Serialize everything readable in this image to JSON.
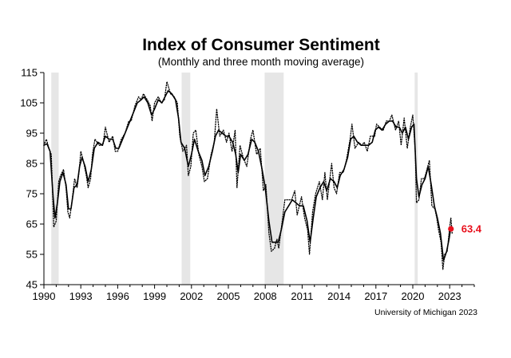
{
  "chart_data": {
    "type": "line",
    "title": "Index of Consumer Sentiment",
    "subtitle": "(Monthly and three month moving average)",
    "source": "University of Michigan 2023",
    "xlim": [
      1990,
      2025
    ],
    "ylim": [
      45,
      115
    ],
    "yticks": [
      45,
      55,
      65,
      75,
      85,
      95,
      105,
      115
    ],
    "xticks": [
      1990,
      1993,
      1996,
      1999,
      2002,
      2005,
      2008,
      2011,
      2014,
      2017,
      2020,
      2023
    ],
    "xticks_labels": [
      "1990",
      "1993",
      "1996",
      "1999",
      "2002",
      "2005",
      "2008",
      "2011",
      "2014",
      "2017",
      "2020",
      "2023"
    ],
    "yticks_labels": [
      "45",
      "55",
      "65",
      "75",
      "85",
      "95",
      "105",
      "115"
    ],
    "recessions": [
      {
        "start": 1990.6,
        "end": 1991.2
      },
      {
        "start": 2001.2,
        "end": 2001.9
      },
      {
        "start": 2007.95,
        "end": 2009.5
      },
      {
        "start": 2020.15,
        "end": 2020.4
      }
    ],
    "latest": {
      "x": 2023.1,
      "y": 63.4,
      "label": "63.4",
      "color": "#e8101c"
    },
    "series": [
      {
        "name": "Monthly",
        "style": "dotted",
        "points": [
          [
            1990.0,
            91
          ],
          [
            1990.2,
            93
          ],
          [
            1990.4,
            90
          ],
          [
            1990.6,
            88
          ],
          [
            1990.7,
            76
          ],
          [
            1990.8,
            64
          ],
          [
            1991.0,
            66
          ],
          [
            1991.2,
            79
          ],
          [
            1991.35,
            81
          ],
          [
            1991.6,
            83
          ],
          [
            1991.8,
            77
          ],
          [
            1991.95,
            69
          ],
          [
            1992.1,
            67
          ],
          [
            1992.3,
            73
          ],
          [
            1992.5,
            80
          ],
          [
            1992.7,
            77
          ],
          [
            1992.85,
            82
          ],
          [
            1993.0,
            89
          ],
          [
            1993.2,
            86
          ],
          [
            1993.45,
            81
          ],
          [
            1993.6,
            77
          ],
          [
            1993.8,
            80
          ],
          [
            1993.95,
            88
          ],
          [
            1994.15,
            93
          ],
          [
            1994.5,
            91
          ],
          [
            1994.8,
            91
          ],
          [
            1995.0,
            97
          ],
          [
            1995.3,
            92
          ],
          [
            1995.6,
            94
          ],
          [
            1995.8,
            89
          ],
          [
            1996.0,
            89
          ],
          [
            1996.3,
            93
          ],
          [
            1996.6,
            95
          ],
          [
            1996.9,
            99
          ],
          [
            1997.1,
            99
          ],
          [
            1997.4,
            104
          ],
          [
            1997.7,
            107
          ],
          [
            1997.9,
            106
          ],
          [
            1998.1,
            108
          ],
          [
            1998.4,
            106
          ],
          [
            1998.65,
            104
          ],
          [
            1998.8,
            99
          ],
          [
            1999.0,
            105
          ],
          [
            1999.3,
            107
          ],
          [
            1999.55,
            105
          ],
          [
            1999.8,
            106
          ],
          [
            2000.0,
            112
          ],
          [
            2000.3,
            108
          ],
          [
            2000.6,
            107
          ],
          [
            2000.85,
            105
          ],
          [
            2001.05,
            94
          ],
          [
            2001.3,
            89
          ],
          [
            2001.6,
            91
          ],
          [
            2001.75,
            81
          ],
          [
            2001.95,
            84
          ],
          [
            2002.15,
            95
          ],
          [
            2002.35,
            96
          ],
          [
            2002.6,
            88
          ],
          [
            2002.85,
            84
          ],
          [
            2003.05,
            79
          ],
          [
            2003.3,
            80
          ],
          [
            2003.6,
            88
          ],
          [
            2003.85,
            92
          ],
          [
            2004.05,
            103
          ],
          [
            2004.3,
            94
          ],
          [
            2004.6,
            96
          ],
          [
            2004.85,
            92
          ],
          [
            2005.05,
            95
          ],
          [
            2005.3,
            89
          ],
          [
            2005.55,
            96
          ],
          [
            2005.7,
            77
          ],
          [
            2005.95,
            91
          ],
          [
            2006.2,
            87
          ],
          [
            2006.5,
            84
          ],
          [
            2006.8,
            93
          ],
          [
            2007.0,
            96
          ],
          [
            2007.3,
            88
          ],
          [
            2007.6,
            90
          ],
          [
            2007.85,
            76
          ],
          [
            2008.05,
            78
          ],
          [
            2008.3,
            62
          ],
          [
            2008.5,
            56
          ],
          [
            2008.75,
            57
          ],
          [
            2008.95,
            60
          ],
          [
            2009.1,
            57
          ],
          [
            2009.35,
            65
          ],
          [
            2009.6,
            73
          ],
          [
            2009.9,
            73
          ],
          [
            2010.15,
            73
          ],
          [
            2010.4,
            76
          ],
          [
            2010.6,
            68
          ],
          [
            2010.95,
            74
          ],
          [
            2011.2,
            67
          ],
          [
            2011.45,
            63
          ],
          [
            2011.6,
            55
          ],
          [
            2011.85,
            69
          ],
          [
            2012.1,
            75
          ],
          [
            2012.4,
            79
          ],
          [
            2012.65,
            73
          ],
          [
            2012.85,
            82
          ],
          [
            2013.05,
            73
          ],
          [
            2013.4,
            85
          ],
          [
            2013.6,
            77
          ],
          [
            2013.8,
            75
          ],
          [
            2014.05,
            82
          ],
          [
            2014.35,
            82
          ],
          [
            2014.6,
            86
          ],
          [
            2014.9,
            93
          ],
          [
            2015.05,
            98
          ],
          [
            2015.3,
            90
          ],
          [
            2015.6,
            92
          ],
          [
            2015.85,
            91
          ],
          [
            2016.05,
            92
          ],
          [
            2016.3,
            89
          ],
          [
            2016.55,
            94
          ],
          [
            2016.9,
            94
          ],
          [
            2017.05,
            98
          ],
          [
            2017.3,
            97
          ],
          [
            2017.6,
            96
          ],
          [
            2017.85,
            99
          ],
          [
            2018.1,
            99
          ],
          [
            2018.3,
            101
          ],
          [
            2018.6,
            96
          ],
          [
            2018.85,
            99
          ],
          [
            2019.05,
            91
          ],
          [
            2019.3,
            100
          ],
          [
            2019.55,
            90
          ],
          [
            2019.8,
            97
          ],
          [
            2020.0,
            101
          ],
          [
            2020.2,
            89
          ],
          [
            2020.3,
            72
          ],
          [
            2020.5,
            73
          ],
          [
            2020.7,
            80
          ],
          [
            2020.95,
            80
          ],
          [
            2021.15,
            83
          ],
          [
            2021.35,
            86
          ],
          [
            2021.55,
            71
          ],
          [
            2021.8,
            70
          ],
          [
            2021.95,
            67
          ],
          [
            2022.1,
            63
          ],
          [
            2022.3,
            59
          ],
          [
            2022.45,
            50
          ],
          [
            2022.6,
            55
          ],
          [
            2022.8,
            56
          ],
          [
            2023.0,
            64
          ],
          [
            2023.1,
            67
          ],
          [
            2023.2,
            62
          ]
        ]
      },
      {
        "name": "Three month moving average",
        "style": "solid",
        "points": [
          [
            1990.0,
            91
          ],
          [
            1990.25,
            91.5
          ],
          [
            1990.5,
            89
          ],
          [
            1990.75,
            74
          ],
          [
            1990.9,
            67
          ],
          [
            1991.1,
            72
          ],
          [
            1991.3,
            79
          ],
          [
            1991.55,
            82
          ],
          [
            1991.8,
            78
          ],
          [
            1992.0,
            70
          ],
          [
            1992.2,
            70
          ],
          [
            1992.45,
            77
          ],
          [
            1992.7,
            78
          ],
          [
            1992.9,
            84
          ],
          [
            1993.1,
            87
          ],
          [
            1993.35,
            84
          ],
          [
            1993.6,
            79
          ],
          [
            1993.85,
            83
          ],
          [
            1994.1,
            90
          ],
          [
            1994.4,
            92
          ],
          [
            1994.75,
            91
          ],
          [
            1995.0,
            94
          ],
          [
            1995.3,
            93
          ],
          [
            1995.6,
            93
          ],
          [
            1995.85,
            90
          ],
          [
            1996.1,
            90
          ],
          [
            1996.4,
            93
          ],
          [
            1996.7,
            96
          ],
          [
            1997.0,
            99
          ],
          [
            1997.3,
            102
          ],
          [
            1997.6,
            105
          ],
          [
            1997.9,
            106
          ],
          [
            1998.15,
            107
          ],
          [
            1998.45,
            105
          ],
          [
            1998.75,
            101
          ],
          [
            1999.0,
            103
          ],
          [
            1999.3,
            106
          ],
          [
            1999.6,
            105
          ],
          [
            1999.85,
            107
          ],
          [
            2000.1,
            109
          ],
          [
            2000.4,
            108
          ],
          [
            2000.7,
            106
          ],
          [
            2000.95,
            100
          ],
          [
            2001.15,
            92
          ],
          [
            2001.45,
            90
          ],
          [
            2001.75,
            84
          ],
          [
            2002.0,
            88
          ],
          [
            2002.25,
            93
          ],
          [
            2002.55,
            89
          ],
          [
            2002.85,
            86
          ],
          [
            2003.1,
            81
          ],
          [
            2003.4,
            84
          ],
          [
            2003.7,
            89
          ],
          [
            2003.95,
            94
          ],
          [
            2004.2,
            96
          ],
          [
            2004.5,
            95
          ],
          [
            2004.8,
            94
          ],
          [
            2005.05,
            94
          ],
          [
            2005.35,
            92
          ],
          [
            2005.6,
            88
          ],
          [
            2005.8,
            82
          ],
          [
            2006.0,
            88
          ],
          [
            2006.3,
            86
          ],
          [
            2006.6,
            88
          ],
          [
            2006.9,
            93
          ],
          [
            2007.15,
            92
          ],
          [
            2007.45,
            89
          ],
          [
            2007.75,
            83
          ],
          [
            2008.0,
            77
          ],
          [
            2008.3,
            66
          ],
          [
            2008.55,
            59
          ],
          [
            2008.8,
            59
          ],
          [
            2009.05,
            59
          ],
          [
            2009.3,
            63
          ],
          [
            2009.6,
            69
          ],
          [
            2009.9,
            71
          ],
          [
            2010.2,
            73
          ],
          [
            2010.5,
            72
          ],
          [
            2010.8,
            71
          ],
          [
            2011.1,
            71
          ],
          [
            2011.4,
            66
          ],
          [
            2011.65,
            59
          ],
          [
            2011.9,
            67
          ],
          [
            2012.15,
            74
          ],
          [
            2012.45,
            77
          ],
          [
            2012.75,
            79
          ],
          [
            2013.0,
            76
          ],
          [
            2013.3,
            80
          ],
          [
            2013.6,
            79
          ],
          [
            2013.85,
            77
          ],
          [
            2014.1,
            81
          ],
          [
            2014.4,
            83
          ],
          [
            2014.7,
            87
          ],
          [
            2014.95,
            93
          ],
          [
            2015.2,
            94
          ],
          [
            2015.5,
            92
          ],
          [
            2015.8,
            91
          ],
          [
            2016.1,
            91
          ],
          [
            2016.4,
            91
          ],
          [
            2016.7,
            92
          ],
          [
            2016.95,
            96
          ],
          [
            2017.2,
            97
          ],
          [
            2017.5,
            96
          ],
          [
            2017.8,
            98
          ],
          [
            2018.1,
            99
          ],
          [
            2018.35,
            99
          ],
          [
            2018.65,
            97
          ],
          [
            2018.9,
            97
          ],
          [
            2019.15,
            95
          ],
          [
            2019.4,
            97
          ],
          [
            2019.65,
            93
          ],
          [
            2019.9,
            97
          ],
          [
            2020.1,
            98
          ],
          [
            2020.3,
            80
          ],
          [
            2020.5,
            74
          ],
          [
            2020.75,
            78
          ],
          [
            2021.0,
            80
          ],
          [
            2021.25,
            84
          ],
          [
            2021.5,
            78
          ],
          [
            2021.75,
            71
          ],
          [
            2022.0,
            67
          ],
          [
            2022.25,
            62
          ],
          [
            2022.5,
            53
          ],
          [
            2022.75,
            56
          ],
          [
            2022.95,
            60
          ],
          [
            2023.1,
            64
          ],
          [
            2023.2,
            63.4
          ]
        ]
      }
    ]
  }
}
